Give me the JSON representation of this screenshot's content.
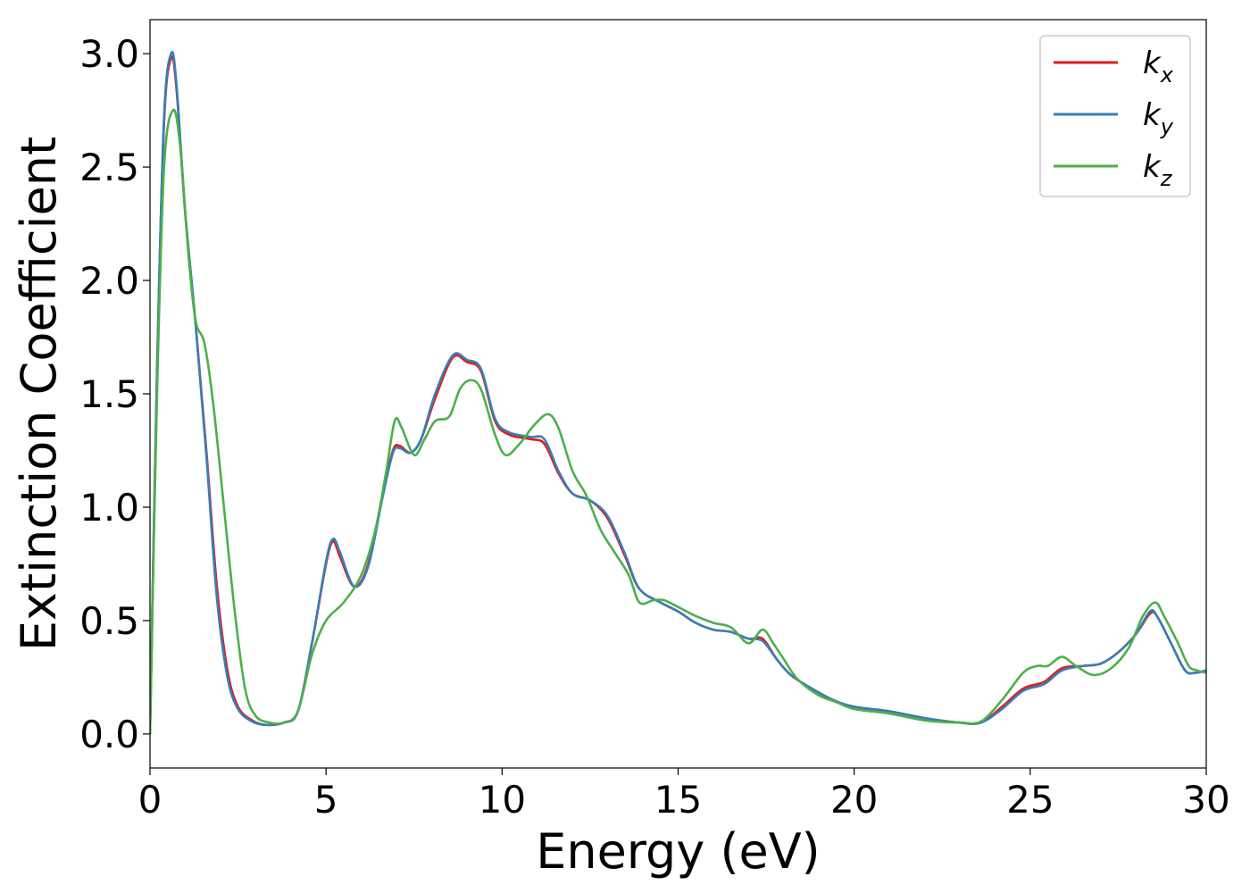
{
  "chart_data": {
    "type": "line",
    "xlabel": "Energy (eV)",
    "ylabel": "Extinction Coefficient",
    "xlim": [
      0,
      30
    ],
    "ylim": [
      -0.15,
      3.15
    ],
    "xticks": [
      0,
      5,
      10,
      15,
      20,
      25,
      30
    ],
    "xtick_labels": [
      "0",
      "5",
      "10",
      "15",
      "20",
      "25",
      "30"
    ],
    "yticks": [
      0.0,
      0.5,
      1.0,
      1.5,
      2.0,
      2.5,
      3.0
    ],
    "ytick_labels": [
      "0.0",
      "0.5",
      "1.0",
      "1.5",
      "2.0",
      "2.5",
      "3.0"
    ],
    "grid": false,
    "legend_position": "top-right",
    "series": [
      {
        "name": "k",
        "subscript": "x",
        "color": "#e41a1c",
        "points": [
          [
            0,
            0
          ],
          [
            0.2,
            1.6
          ],
          [
            0.4,
            2.7
          ],
          [
            0.6,
            2.98
          ],
          [
            0.75,
            2.85
          ],
          [
            1.0,
            2.3
          ],
          [
            1.3,
            1.8
          ],
          [
            1.6,
            1.25
          ],
          [
            1.9,
            0.65
          ],
          [
            2.2,
            0.28
          ],
          [
            2.5,
            0.12
          ],
          [
            2.9,
            0.06
          ],
          [
            3.3,
            0.04
          ],
          [
            3.8,
            0.05
          ],
          [
            4.2,
            0.1
          ],
          [
            4.6,
            0.4
          ],
          [
            5.0,
            0.75
          ],
          [
            5.2,
            0.85
          ],
          [
            5.4,
            0.78
          ],
          [
            5.8,
            0.65
          ],
          [
            6.2,
            0.75
          ],
          [
            6.6,
            1.05
          ],
          [
            6.9,
            1.25
          ],
          [
            7.1,
            1.27
          ],
          [
            7.4,
            1.24
          ],
          [
            7.7,
            1.3
          ],
          [
            8.1,
            1.48
          ],
          [
            8.6,
            1.66
          ],
          [
            9.0,
            1.64
          ],
          [
            9.4,
            1.6
          ],
          [
            9.8,
            1.38
          ],
          [
            10.2,
            1.32
          ],
          [
            10.8,
            1.3
          ],
          [
            11.2,
            1.28
          ],
          [
            11.6,
            1.15
          ],
          [
            12.0,
            1.06
          ],
          [
            12.5,
            1.03
          ],
          [
            13.0,
            0.95
          ],
          [
            13.5,
            0.78
          ],
          [
            13.9,
            0.64
          ],
          [
            14.5,
            0.58
          ],
          [
            15.0,
            0.54
          ],
          [
            15.5,
            0.49
          ],
          [
            16.0,
            0.46
          ],
          [
            16.5,
            0.45
          ],
          [
            17.0,
            0.42
          ],
          [
            17.4,
            0.42
          ],
          [
            17.8,
            0.33
          ],
          [
            18.2,
            0.26
          ],
          [
            18.8,
            0.2
          ],
          [
            19.4,
            0.15
          ],
          [
            20.0,
            0.12
          ],
          [
            21.0,
            0.1
          ],
          [
            22.0,
            0.07
          ],
          [
            23.0,
            0.05
          ],
          [
            23.6,
            0.05
          ],
          [
            24.2,
            0.12
          ],
          [
            24.8,
            0.2
          ],
          [
            25.4,
            0.23
          ],
          [
            25.9,
            0.29
          ],
          [
            26.5,
            0.3
          ],
          [
            27.0,
            0.31
          ],
          [
            27.5,
            0.36
          ],
          [
            28.0,
            0.44
          ],
          [
            28.4,
            0.53
          ],
          [
            28.6,
            0.52
          ],
          [
            29.0,
            0.4
          ],
          [
            29.4,
            0.28
          ],
          [
            29.7,
            0.27
          ],
          [
            30.0,
            0.28
          ]
        ]
      },
      {
        "name": "k",
        "subscript": "y",
        "color": "#377eb8",
        "points": [
          [
            0,
            0
          ],
          [
            0.2,
            1.6
          ],
          [
            0.4,
            2.72
          ],
          [
            0.6,
            3.0
          ],
          [
            0.75,
            2.87
          ],
          [
            1.0,
            2.3
          ],
          [
            1.3,
            1.8
          ],
          [
            1.6,
            1.23
          ],
          [
            1.9,
            0.6
          ],
          [
            2.2,
            0.25
          ],
          [
            2.5,
            0.11
          ],
          [
            2.9,
            0.055
          ],
          [
            3.3,
            0.04
          ],
          [
            3.8,
            0.05
          ],
          [
            4.2,
            0.1
          ],
          [
            4.6,
            0.4
          ],
          [
            5.0,
            0.76
          ],
          [
            5.2,
            0.86
          ],
          [
            5.4,
            0.8
          ],
          [
            5.8,
            0.65
          ],
          [
            6.2,
            0.74
          ],
          [
            6.6,
            1.04
          ],
          [
            6.9,
            1.24
          ],
          [
            7.1,
            1.26
          ],
          [
            7.4,
            1.24
          ],
          [
            7.7,
            1.3
          ],
          [
            8.1,
            1.5
          ],
          [
            8.6,
            1.67
          ],
          [
            9.0,
            1.65
          ],
          [
            9.4,
            1.61
          ],
          [
            9.8,
            1.39
          ],
          [
            10.2,
            1.33
          ],
          [
            10.8,
            1.31
          ],
          [
            11.2,
            1.3
          ],
          [
            11.6,
            1.16
          ],
          [
            12.0,
            1.06
          ],
          [
            12.5,
            1.03
          ],
          [
            13.0,
            0.96
          ],
          [
            13.5,
            0.79
          ],
          [
            13.9,
            0.64
          ],
          [
            14.5,
            0.58
          ],
          [
            15.0,
            0.54
          ],
          [
            15.5,
            0.49
          ],
          [
            16.0,
            0.46
          ],
          [
            16.5,
            0.45
          ],
          [
            17.0,
            0.42
          ],
          [
            17.4,
            0.41
          ],
          [
            17.8,
            0.33
          ],
          [
            18.2,
            0.26
          ],
          [
            18.8,
            0.2
          ],
          [
            19.4,
            0.15
          ],
          [
            20.0,
            0.12
          ],
          [
            21.0,
            0.1
          ],
          [
            22.0,
            0.07
          ],
          [
            23.0,
            0.05
          ],
          [
            23.6,
            0.05
          ],
          [
            24.2,
            0.11
          ],
          [
            24.8,
            0.19
          ],
          [
            25.4,
            0.22
          ],
          [
            25.9,
            0.28
          ],
          [
            26.5,
            0.3
          ],
          [
            27.0,
            0.31
          ],
          [
            27.5,
            0.36
          ],
          [
            28.0,
            0.44
          ],
          [
            28.4,
            0.54
          ],
          [
            28.6,
            0.52
          ],
          [
            29.0,
            0.4
          ],
          [
            29.4,
            0.28
          ],
          [
            29.7,
            0.27
          ],
          [
            30.0,
            0.28
          ]
        ]
      },
      {
        "name": "k",
        "subscript": "z",
        "color": "#4daf4a",
        "points": [
          [
            0,
            0
          ],
          [
            0.2,
            1.5
          ],
          [
            0.4,
            2.5
          ],
          [
            0.65,
            2.75
          ],
          [
            0.85,
            2.6
          ],
          [
            1.1,
            2.1
          ],
          [
            1.3,
            1.82
          ],
          [
            1.55,
            1.72
          ],
          [
            1.8,
            1.45
          ],
          [
            2.1,
            1.0
          ],
          [
            2.4,
            0.55
          ],
          [
            2.7,
            0.2
          ],
          [
            3.0,
            0.08
          ],
          [
            3.4,
            0.05
          ],
          [
            3.8,
            0.05
          ],
          [
            4.2,
            0.1
          ],
          [
            4.6,
            0.35
          ],
          [
            5.0,
            0.5
          ],
          [
            5.5,
            0.58
          ],
          [
            6.0,
            0.7
          ],
          [
            6.4,
            0.9
          ],
          [
            6.7,
            1.15
          ],
          [
            6.95,
            1.38
          ],
          [
            7.15,
            1.35
          ],
          [
            7.5,
            1.23
          ],
          [
            7.8,
            1.3
          ],
          [
            8.1,
            1.38
          ],
          [
            8.5,
            1.4
          ],
          [
            8.8,
            1.52
          ],
          [
            9.1,
            1.56
          ],
          [
            9.4,
            1.52
          ],
          [
            9.8,
            1.32
          ],
          [
            10.1,
            1.23
          ],
          [
            10.5,
            1.28
          ],
          [
            10.9,
            1.36
          ],
          [
            11.3,
            1.41
          ],
          [
            11.6,
            1.35
          ],
          [
            12.0,
            1.16
          ],
          [
            12.4,
            1.05
          ],
          [
            12.8,
            0.9
          ],
          [
            13.2,
            0.8
          ],
          [
            13.6,
            0.7
          ],
          [
            13.9,
            0.58
          ],
          [
            14.3,
            0.59
          ],
          [
            14.6,
            0.59
          ],
          [
            15.0,
            0.56
          ],
          [
            15.5,
            0.52
          ],
          [
            16.0,
            0.49
          ],
          [
            16.5,
            0.47
          ],
          [
            17.0,
            0.4
          ],
          [
            17.4,
            0.46
          ],
          [
            17.7,
            0.4
          ],
          [
            18.0,
            0.33
          ],
          [
            18.4,
            0.24
          ],
          [
            19.0,
            0.17
          ],
          [
            19.5,
            0.14
          ],
          [
            20.0,
            0.11
          ],
          [
            21.0,
            0.09
          ],
          [
            22.0,
            0.06
          ],
          [
            23.0,
            0.05
          ],
          [
            23.6,
            0.055
          ],
          [
            24.2,
            0.15
          ],
          [
            24.8,
            0.27
          ],
          [
            25.2,
            0.3
          ],
          [
            25.5,
            0.3
          ],
          [
            25.9,
            0.34
          ],
          [
            26.3,
            0.3
          ],
          [
            26.8,
            0.26
          ],
          [
            27.3,
            0.29
          ],
          [
            27.8,
            0.38
          ],
          [
            28.2,
            0.52
          ],
          [
            28.55,
            0.58
          ],
          [
            28.8,
            0.52
          ],
          [
            29.2,
            0.4
          ],
          [
            29.5,
            0.3
          ],
          [
            29.75,
            0.28
          ],
          [
            30.0,
            0.27
          ]
        ]
      }
    ]
  }
}
